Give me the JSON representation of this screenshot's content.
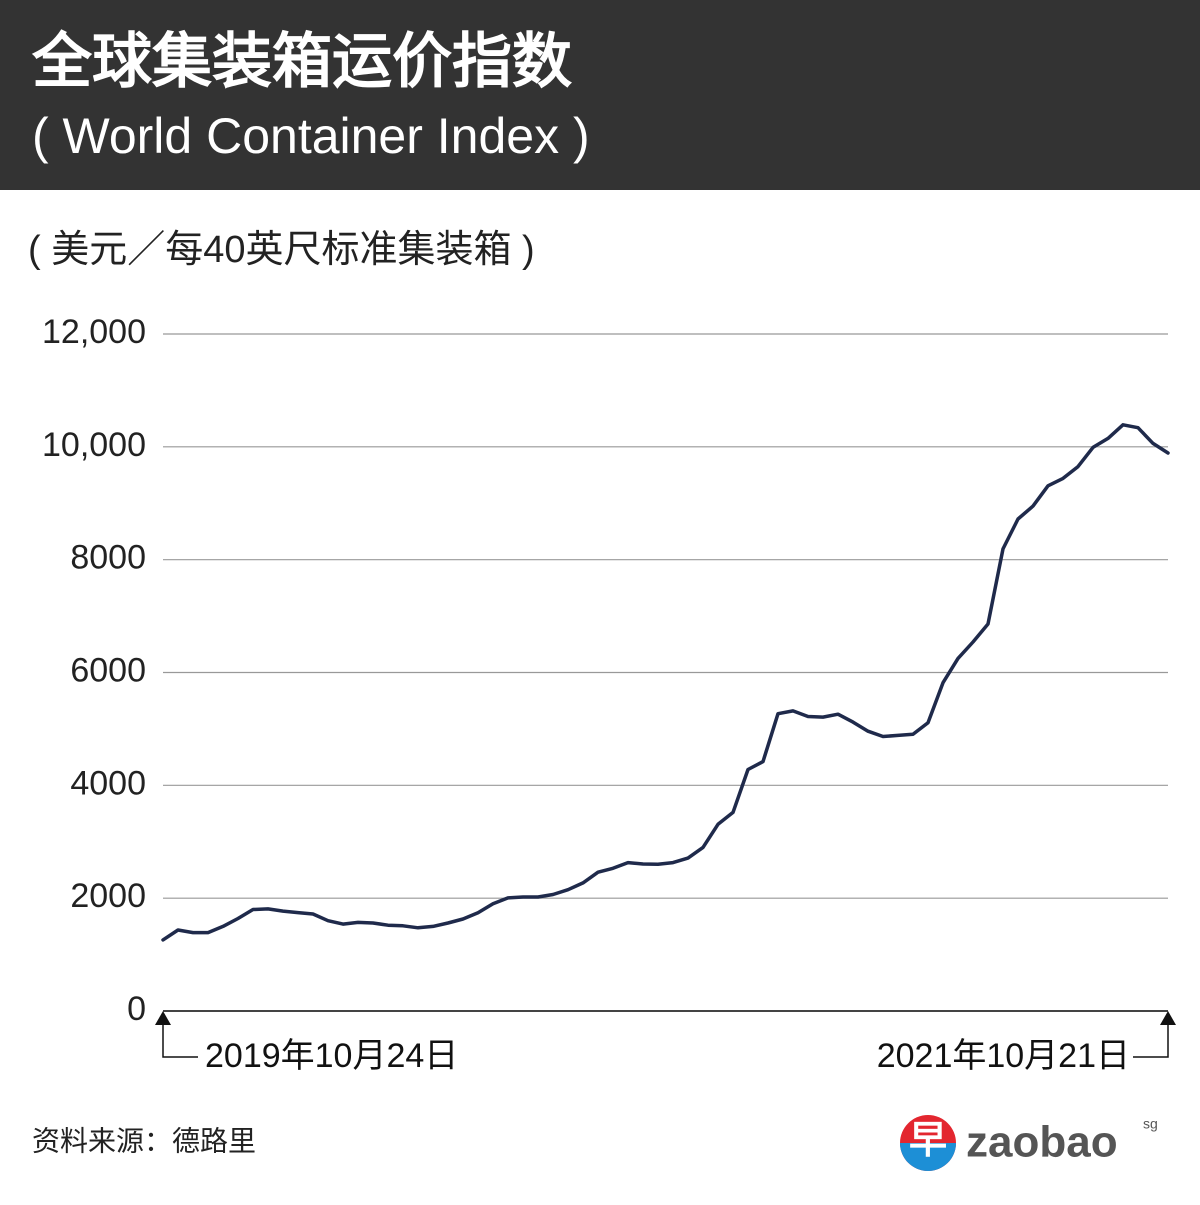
{
  "chart_data": {
    "type": "line",
    "title": "全球集装箱运价指数",
    "subtitle": "( World Container Index )",
    "y_label": "( 美元／每40英尺标准集装箱 )",
    "source": "资料来源：德路里",
    "logo": {
      "mark": "早",
      "name": "zaobao",
      "suffix": "sg"
    },
    "categories": [
      "2019年10月24日",
      null,
      null,
      null,
      null,
      null,
      null,
      null,
      null,
      null,
      null,
      null,
      null,
      null,
      null,
      null,
      null,
      null,
      null,
      null,
      null,
      null,
      null,
      null,
      null,
      null,
      null,
      null,
      null,
      null,
      null,
      null,
      null,
      null,
      null,
      null,
      null,
      null,
      null,
      null,
      null,
      null,
      null,
      null,
      null,
      null,
      null,
      null,
      null,
      null,
      null,
      null,
      null,
      null,
      null,
      null,
      null,
      null,
      null,
      null,
      null,
      null,
      null,
      null,
      null,
      null,
      null,
      "2021年10月21日"
    ],
    "values": [
      1260,
      1435,
      1390,
      1390,
      1500,
      1640,
      1800,
      1810,
      1770,
      1745,
      1720,
      1600,
      1540,
      1570,
      1560,
      1520,
      1510,
      1475,
      1500,
      1560,
      1630,
      1740,
      1900,
      2005,
      2020,
      2020,
      2065,
      2150,
      2270,
      2460,
      2530,
      2630,
      2605,
      2600,
      2630,
      2710,
      2900,
      3310,
      3520,
      4280,
      4420,
      5270,
      5320,
      5220,
      5210,
      5260,
      5120,
      4960,
      4865,
      4885,
      4905,
      5110,
      5820,
      6250,
      6540,
      6860,
      8190,
      8720,
      8950,
      9310,
      9440,
      9650,
      9990,
      10150,
      10390,
      10340,
      10060,
      9890
    ],
    "color": "#1f2a4b",
    "ylim": [
      0,
      12000
    ],
    "yticks": [
      0,
      2000,
      4000,
      6000,
      8000,
      {
        "value": 10000,
        "label": "10,000"
      },
      {
        "value": 12000,
        "label": "12,000"
      }
    ],
    "grid": true
  }
}
